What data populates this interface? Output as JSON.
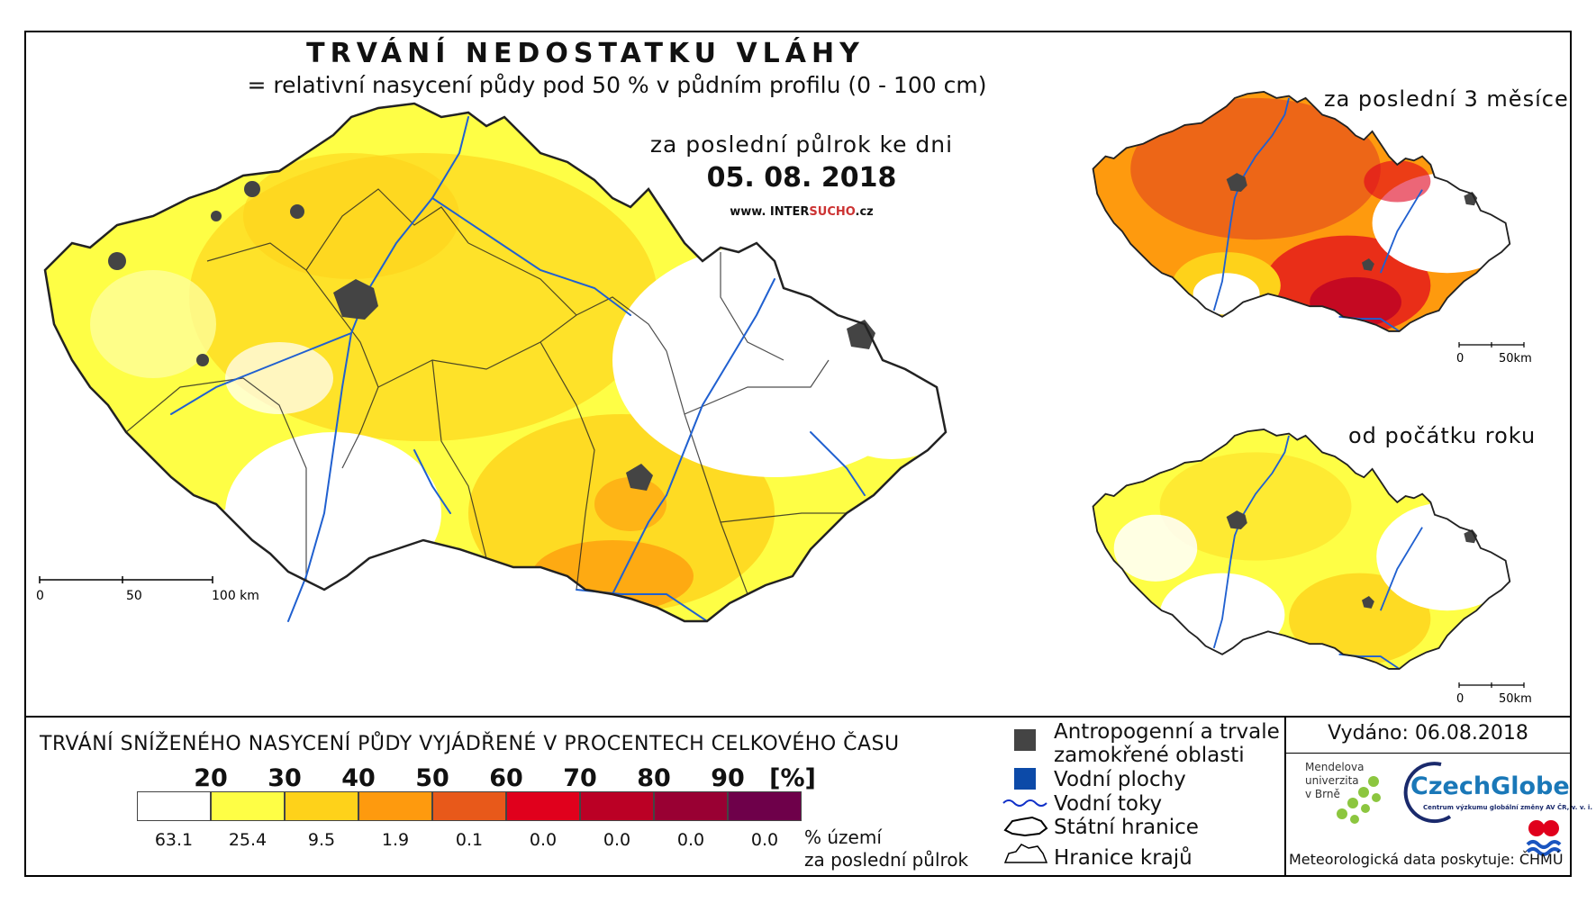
{
  "header": {
    "title": "TRVÁNÍ NEDOSTATKU VLÁHY",
    "subtitle": "= relativní nasycení půdy pod 50 % v půdním profilu (0 - 100 cm)",
    "period": "za poslední půlrok ke dni",
    "date": "05. 08. 2018",
    "website_prefix": "www. INTER",
    "website_highlight": "SUCHO",
    "website_suffix": ".cz"
  },
  "main_map": {
    "scale_labels": [
      "0",
      "50",
      "100 km"
    ]
  },
  "insets": {
    "top_title": "za poslední 3 měsíce",
    "bottom_title": "od počátku roku",
    "scale_labels": [
      "0",
      "50km"
    ]
  },
  "legend": {
    "title": "TRVÁNÍ SNÍŽENÉHO NASYCENÍ PŮDY VYJÁDŘENÉ V PROCENTECH CELKOVÉHO ČASU",
    "thresholds": [
      "20",
      "30",
      "40",
      "50",
      "60",
      "70",
      "80",
      "90",
      "[%]"
    ],
    "colors": [
      "#ffffff",
      "#fefe45",
      "#fed21a",
      "#fe9a0e",
      "#e8591a",
      "#e0001c",
      "#bb0025",
      "#990033",
      "#6e004a"
    ],
    "percentages": [
      "63.1",
      "25.4",
      "9.5",
      "1.9",
      "0.1",
      "0.0",
      "0.0",
      "0.0",
      "0.0"
    ],
    "pct_note_line1": "% území",
    "pct_note_line2": "za poslední půlrok"
  },
  "symbols": {
    "anthropogenic_line1": "Antropogenní a trvale",
    "anthropogenic_line2": "zamokřené oblasti",
    "water_bodies": "Vodní plochy",
    "rivers": "Vodní toky",
    "state_border": "Státní hranice",
    "region_border": "Hranice krajů"
  },
  "info": {
    "issued": "Vydáno: 06.08.2018",
    "mendel_line1": "Mendelova",
    "mendel_line2": "univerzita",
    "mendel_line3": "v Brně",
    "czechglobe": "CzechGlobe",
    "czechglobe_sub": "Centrum výzkumu globální změny AV ČR, v. v. i.",
    "meteo": "Meteorologická data poskytuje: ČHMÚ"
  }
}
